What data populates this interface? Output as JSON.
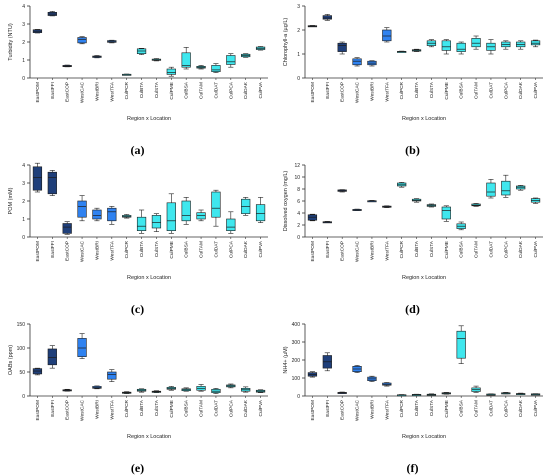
{
  "chart_data": [
    {
      "type": "box",
      "caption": "(a)",
      "ylabel": "Turbidity (NTU)",
      "xlabel": "Region x Location",
      "ylim": [
        0,
        4
      ],
      "yticks": [
        0,
        1,
        2,
        3,
        4
      ],
      "categories": [
        "EastPOM",
        "EastFFI",
        "EastCOP",
        "WestCAC",
        "WestBRI",
        "WestTFA",
        "CulPCR",
        "CulBTA",
        "CulSTA",
        "CulPME",
        "CulBSA",
        "CulTAM",
        "CulDAT",
        "CulPCA",
        "CulDAK",
        "CulPVA"
      ],
      "groups": [
        "east",
        "east",
        "east",
        "west",
        "west",
        "west",
        "cul",
        "cul",
        "cul",
        "cul",
        "cul",
        "cul",
        "cul",
        "cul",
        "cul",
        "cul"
      ],
      "boxes": [
        {
          "min": 2.5,
          "q1": 2.52,
          "median": 2.6,
          "q3": 2.68,
          "max": 2.7
        },
        {
          "min": 3.45,
          "q1": 3.47,
          "median": 3.55,
          "q3": 3.65,
          "max": 3.7
        },
        {
          "min": 0.62,
          "q1": 0.63,
          "median": 0.66,
          "q3": 0.7,
          "max": 0.72
        },
        {
          "min": 1.9,
          "q1": 1.95,
          "median": 2.15,
          "q3": 2.25,
          "max": 2.3
        },
        {
          "min": 1.12,
          "q1": 1.14,
          "median": 1.18,
          "q3": 1.22,
          "max": 1.25
        },
        {
          "min": 1.95,
          "q1": 1.98,
          "median": 2.02,
          "q3": 2.08,
          "max": 2.1
        },
        {
          "min": 0.18,
          "q1": 0.19,
          "median": 0.2,
          "q3": 0.21,
          "max": 0.22
        },
        {
          "min": 1.3,
          "q1": 1.35,
          "median": 1.5,
          "q3": 1.62,
          "max": 1.65
        },
        {
          "min": 0.95,
          "q1": 0.98,
          "median": 1.0,
          "q3": 1.05,
          "max": 1.08
        },
        {
          "min": 0.1,
          "q1": 0.2,
          "median": 0.3,
          "q3": 0.5,
          "max": 0.6
        },
        {
          "min": 0.5,
          "q1": 0.6,
          "median": 0.7,
          "q3": 1.4,
          "max": 1.7
        },
        {
          "min": 0.5,
          "q1": 0.55,
          "median": 0.6,
          "q3": 0.65,
          "max": 0.7
        },
        {
          "min": 0.3,
          "q1": 0.35,
          "median": 0.45,
          "q3": 0.7,
          "max": 0.8
        },
        {
          "min": 0.6,
          "q1": 0.75,
          "median": 0.9,
          "q3": 1.25,
          "max": 1.35
        },
        {
          "min": 1.15,
          "q1": 1.18,
          "median": 1.25,
          "q3": 1.32,
          "max": 1.35
        },
        {
          "min": 1.55,
          "q1": 1.58,
          "median": 1.65,
          "q3": 1.72,
          "max": 1.75
        }
      ]
    },
    {
      "type": "box",
      "caption": "(b)",
      "ylabel": "Chlorophyll-a (µg/L)",
      "xlabel": "Region x Location",
      "ylim": [
        0,
        3
      ],
      "yticks": [
        0,
        1,
        2,
        3
      ],
      "categories": [
        "EastPOM",
        "EastFFI",
        "EastCOP",
        "WestCAC",
        "WestBRI",
        "WestTFA",
        "CulPCR",
        "CulBTA",
        "CulSTA",
        "CulPME",
        "CulBSA",
        "CulTAM",
        "CulDAT",
        "CulPCA",
        "CulDAK",
        "CulPVA"
      ],
      "groups": [
        "east",
        "east",
        "east",
        "west",
        "west",
        "west",
        "cul",
        "cul",
        "cul",
        "cul",
        "cul",
        "cul",
        "cul",
        "cul",
        "cul",
        "cul"
      ],
      "boxes": [
        {
          "min": 2.14,
          "q1": 2.15,
          "median": 2.16,
          "q3": 2.18,
          "max": 2.19
        },
        {
          "min": 2.4,
          "q1": 2.45,
          "median": 2.5,
          "q3": 2.6,
          "max": 2.65
        },
        {
          "min": 1.0,
          "q1": 1.1,
          "median": 1.35,
          "q3": 1.45,
          "max": 1.5
        },
        {
          "min": 0.5,
          "q1": 0.55,
          "median": 0.7,
          "q3": 0.8,
          "max": 0.85
        },
        {
          "min": 0.5,
          "q1": 0.55,
          "median": 0.62,
          "q3": 0.7,
          "max": 0.72
        },
        {
          "min": 1.5,
          "q1": 1.55,
          "median": 1.75,
          "q3": 2.0,
          "max": 2.1
        },
        {
          "min": 1.08,
          "q1": 1.09,
          "median": 1.1,
          "q3": 1.11,
          "max": 1.12
        },
        {
          "min": 1.1,
          "q1": 1.12,
          "median": 1.15,
          "q3": 1.18,
          "max": 1.2
        },
        {
          "min": 1.3,
          "q1": 1.35,
          "median": 1.45,
          "q3": 1.55,
          "max": 1.6
        },
        {
          "min": 1.0,
          "q1": 1.15,
          "median": 1.3,
          "q3": 1.55,
          "max": 1.6
        },
        {
          "min": 1.0,
          "q1": 1.1,
          "median": 1.2,
          "q3": 1.45,
          "max": 1.5
        },
        {
          "min": 1.2,
          "q1": 1.3,
          "median": 1.45,
          "q3": 1.65,
          "max": 1.75
        },
        {
          "min": 1.0,
          "q1": 1.15,
          "median": 1.3,
          "q3": 1.45,
          "max": 1.6
        },
        {
          "min": 1.2,
          "q1": 1.3,
          "median": 1.4,
          "q3": 1.5,
          "max": 1.55
        },
        {
          "min": 1.2,
          "q1": 1.3,
          "median": 1.4,
          "q3": 1.5,
          "max": 1.55
        },
        {
          "min": 1.3,
          "q1": 1.38,
          "median": 1.45,
          "q3": 1.55,
          "max": 1.58
        }
      ]
    },
    {
      "type": "box",
      "caption": "(c)",
      "ylabel": "POM (mM)",
      "xlabel": "Region x Location",
      "ylim": [
        0,
        4
      ],
      "yticks": [
        0,
        1,
        2,
        3,
        4
      ],
      "categories": [
        "EastPOM",
        "EastFFI",
        "EastCOP",
        "WestCAC",
        "WestBRI",
        "WestTFA",
        "CulPCR",
        "CulBTA",
        "CulSTA",
        "CulPME",
        "CulBSA",
        "CulTAM",
        "CulDAT",
        "CulPCA",
        "CulDAK",
        "CulPVA"
      ],
      "groups": [
        "east",
        "east",
        "east",
        "west",
        "west",
        "west",
        "cul",
        "cul",
        "cul",
        "cul",
        "cul",
        "cul",
        "cul",
        "cul",
        "cul",
        "cul"
      ],
      "boxes": [
        {
          "min": 2.5,
          "q1": 2.6,
          "median": 3.3,
          "q3": 3.9,
          "max": 4.1
        },
        {
          "min": 2.3,
          "q1": 2.4,
          "median": 3.3,
          "q3": 3.6,
          "max": 3.7
        },
        {
          "min": 0.15,
          "q1": 0.2,
          "median": 0.55,
          "q3": 0.75,
          "max": 0.85
        },
        {
          "min": 0.9,
          "q1": 1.1,
          "median": 1.7,
          "q3": 2.0,
          "max": 2.3
        },
        {
          "min": 0.9,
          "q1": 1.0,
          "median": 1.2,
          "q3": 1.5,
          "max": 1.6
        },
        {
          "min": 0.7,
          "q1": 0.9,
          "median": 1.4,
          "q3": 1.6,
          "max": 1.7
        },
        {
          "min": 1.05,
          "q1": 1.1,
          "median": 1.15,
          "q3": 1.2,
          "max": 1.25
        },
        {
          "min": 0.2,
          "q1": 0.35,
          "median": 0.6,
          "q3": 1.1,
          "max": 1.5
        },
        {
          "min": 0.3,
          "q1": 0.5,
          "median": 0.8,
          "q3": 1.2,
          "max": 1.3
        },
        {
          "min": 0.2,
          "q1": 0.35,
          "median": 0.9,
          "q3": 1.9,
          "max": 2.4
        },
        {
          "min": 0.7,
          "q1": 0.9,
          "median": 1.2,
          "q3": 2.0,
          "max": 2.2
        },
        {
          "min": 0.9,
          "q1": 1.0,
          "median": 1.2,
          "q3": 1.35,
          "max": 1.5
        },
        {
          "min": 0.6,
          "q1": 1.1,
          "median": 1.6,
          "q3": 2.5,
          "max": 2.6
        },
        {
          "min": 0.2,
          "q1": 0.35,
          "median": 0.55,
          "q3": 1.0,
          "max": 1.4
        },
        {
          "min": 1.2,
          "q1": 1.3,
          "median": 1.7,
          "q3": 2.1,
          "max": 2.2
        },
        {
          "min": 0.8,
          "q1": 0.9,
          "median": 1.3,
          "q3": 1.8,
          "max": 2.2
        }
      ]
    },
    {
      "type": "box",
      "caption": "(d)",
      "ylabel": "Dissolved oxygen (mg/L)",
      "xlabel": "Region x Location",
      "ylim": [
        0,
        12
      ],
      "yticks": [
        0,
        2,
        4,
        6,
        8,
        10,
        12
      ],
      "categories": [
        "EastPOM",
        "EastFFI",
        "EastCOP",
        "WestCAC",
        "WestBRI",
        "WestTFA",
        "CulPCR",
        "CulBTA",
        "CulSTA",
        "CulPME",
        "CulBSA",
        "CulTAM",
        "CulDAT",
        "CulPCA",
        "CulDAK",
        "CulPVA"
      ],
      "groups": [
        "east",
        "east",
        "east",
        "west",
        "west",
        "west",
        "cul",
        "cul",
        "cul",
        "cul",
        "cul",
        "cul",
        "cul",
        "cul",
        "cul",
        "cul"
      ],
      "boxes": [
        {
          "min": 2.7,
          "q1": 2.8,
          "median": 3.3,
          "q3": 3.7,
          "max": 3.8
        },
        {
          "min": 2.4,
          "q1": 2.45,
          "median": 2.5,
          "q3": 2.55,
          "max": 2.6
        },
        {
          "min": 7.5,
          "q1": 7.6,
          "median": 7.7,
          "q3": 7.85,
          "max": 7.9
        },
        {
          "min": 4.4,
          "q1": 4.45,
          "median": 4.5,
          "q3": 4.6,
          "max": 4.65
        },
        {
          "min": 5.9,
          "q1": 5.95,
          "median": 6.0,
          "q3": 6.05,
          "max": 6.1
        },
        {
          "min": 4.9,
          "q1": 4.95,
          "median": 5.05,
          "q3": 5.15,
          "max": 5.2
        },
        {
          "min": 8.3,
          "q1": 8.5,
          "median": 8.7,
          "q3": 9.0,
          "max": 9.1
        },
        {
          "min": 5.8,
          "q1": 6.0,
          "median": 6.1,
          "q3": 6.3,
          "max": 6.4
        },
        {
          "min": 5.0,
          "q1": 5.1,
          "median": 5.25,
          "q3": 5.4,
          "max": 5.5
        },
        {
          "min": 2.6,
          "q1": 3.0,
          "median": 4.4,
          "q3": 5.0,
          "max": 5.2
        },
        {
          "min": 1.2,
          "q1": 1.4,
          "median": 1.8,
          "q3": 2.2,
          "max": 2.5
        },
        {
          "min": 5.1,
          "q1": 5.2,
          "median": 5.3,
          "q3": 5.5,
          "max": 5.6
        },
        {
          "min": 6.5,
          "q1": 6.8,
          "median": 7.5,
          "q3": 9.0,
          "max": 9.6
        },
        {
          "min": 6.6,
          "q1": 7.0,
          "median": 7.7,
          "q3": 9.3,
          "max": 10.3
        },
        {
          "min": 7.8,
          "q1": 8.0,
          "median": 8.3,
          "q3": 8.5,
          "max": 8.6
        },
        {
          "min": 5.6,
          "q1": 5.8,
          "median": 6.1,
          "q3": 6.4,
          "max": 6.5
        }
      ]
    },
    {
      "type": "box",
      "caption": "(e)",
      "ylabel": "OABs (ppm)",
      "xlabel": "Region x Location",
      "ylim": [
        0,
        150
      ],
      "yticks": [
        0,
        50,
        100,
        150
      ],
      "categories": [
        "EastPOM",
        "EastFFI",
        "EastCOP",
        "WestCAC",
        "WestBRI",
        "WestTFA",
        "CulPCR",
        "CulBTA",
        "CulSTA",
        "CulPME",
        "CulBSA",
        "CulTAM",
        "CulDAT",
        "CulPCA",
        "CulDAK",
        "CulPVA"
      ],
      "groups": [
        "east",
        "east",
        "east",
        "west",
        "west",
        "west",
        "cul",
        "cul",
        "cul",
        "cul",
        "cul",
        "cul",
        "cul",
        "cul",
        "cul",
        "cul"
      ],
      "boxes": [
        {
          "min": 44,
          "q1": 46,
          "median": 52,
          "q3": 57,
          "max": 58
        },
        {
          "min": 58,
          "q1": 65,
          "median": 80,
          "q3": 98,
          "max": 105
        },
        {
          "min": 10,
          "q1": 11,
          "median": 12,
          "q3": 13,
          "max": 14
        },
        {
          "min": 78,
          "q1": 82,
          "median": 100,
          "q3": 120,
          "max": 130
        },
        {
          "min": 15,
          "q1": 16,
          "median": 18,
          "q3": 20,
          "max": 21
        },
        {
          "min": 30,
          "q1": 35,
          "median": 45,
          "q3": 50,
          "max": 55
        },
        {
          "min": 5,
          "q1": 6,
          "median": 7,
          "q3": 8,
          "max": 9
        },
        {
          "min": 8,
          "q1": 10,
          "median": 12,
          "q3": 14,
          "max": 15
        },
        {
          "min": 7,
          "q1": 8,
          "median": 9,
          "q3": 10,
          "max": 11
        },
        {
          "min": 12,
          "q1": 14,
          "median": 16,
          "q3": 18,
          "max": 20
        },
        {
          "min": 10,
          "q1": 11,
          "median": 13,
          "q3": 15,
          "max": 17
        },
        {
          "min": 10,
          "q1": 12,
          "median": 16,
          "q3": 20,
          "max": 24
        },
        {
          "min": 5,
          "q1": 7,
          "median": 10,
          "q3": 14,
          "max": 16
        },
        {
          "min": 17,
          "q1": 19,
          "median": 21,
          "q3": 23,
          "max": 25
        },
        {
          "min": 8,
          "q1": 10,
          "median": 13,
          "q3": 16,
          "max": 19
        },
        {
          "min": 7,
          "q1": 8,
          "median": 10,
          "q3": 12,
          "max": 13
        }
      ]
    },
    {
      "type": "box",
      "caption": "(f)",
      "ylabel": "NH4+ (µM)",
      "xlabel": "Region x Location",
      "ylim": [
        0,
        400
      ],
      "yticks": [
        0,
        100,
        200,
        300,
        400
      ],
      "categories": [
        "EastPOM",
        "EastFFI",
        "EastCOP",
        "WestCAC",
        "WestBRI",
        "WestTFA",
        "CulPCR",
        "CulBTA",
        "CulSTA",
        "CulPME",
        "CulBSA",
        "CulTAM",
        "CulDAT",
        "CulPCA",
        "CulDAK",
        "CulPVA"
      ],
      "groups": [
        "east",
        "east",
        "east",
        "west",
        "west",
        "west",
        "cul",
        "cul",
        "cul",
        "cul",
        "cul",
        "cul",
        "cul",
        "cul",
        "cul",
        "cul"
      ],
      "boxes": [
        {
          "min": 105,
          "q1": 110,
          "median": 120,
          "q3": 130,
          "max": 135
        },
        {
          "min": 140,
          "q1": 155,
          "median": 190,
          "q3": 225,
          "max": 240
        },
        {
          "min": 15,
          "q1": 16,
          "median": 18,
          "q3": 20,
          "max": 22
        },
        {
          "min": 130,
          "q1": 135,
          "median": 150,
          "q3": 165,
          "max": 170
        },
        {
          "min": 80,
          "q1": 85,
          "median": 95,
          "q3": 105,
          "max": 110
        },
        {
          "min": 55,
          "q1": 60,
          "median": 65,
          "q3": 72,
          "max": 75
        },
        {
          "min": 4,
          "q1": 5,
          "median": 6,
          "q3": 7,
          "max": 8
        },
        {
          "min": 6,
          "q1": 7,
          "median": 8,
          "q3": 9,
          "max": 10
        },
        {
          "min": 5,
          "q1": 6,
          "median": 8,
          "q3": 10,
          "max": 12
        },
        {
          "min": 10,
          "q1": 12,
          "median": 15,
          "q3": 18,
          "max": 20
        },
        {
          "min": 180,
          "q1": 210,
          "median": 320,
          "q3": 360,
          "max": 390
        },
        {
          "min": 20,
          "q1": 25,
          "median": 35,
          "q3": 45,
          "max": 55
        },
        {
          "min": 5,
          "q1": 7,
          "median": 9,
          "q3": 11,
          "max": 12
        },
        {
          "min": 12,
          "q1": 14,
          "median": 16,
          "q3": 18,
          "max": 20
        },
        {
          "min": 8,
          "q1": 10,
          "median": 12,
          "q3": 14,
          "max": 16
        },
        {
          "min": 8,
          "q1": 9,
          "median": 10,
          "q3": 12,
          "max": 13
        }
      ]
    }
  ],
  "colors": {
    "east": "#1f3f7a",
    "west": "#2f82f0",
    "cul": "#3fe7ee",
    "stroke": "#1c1c1c",
    "axis": "#333333"
  }
}
